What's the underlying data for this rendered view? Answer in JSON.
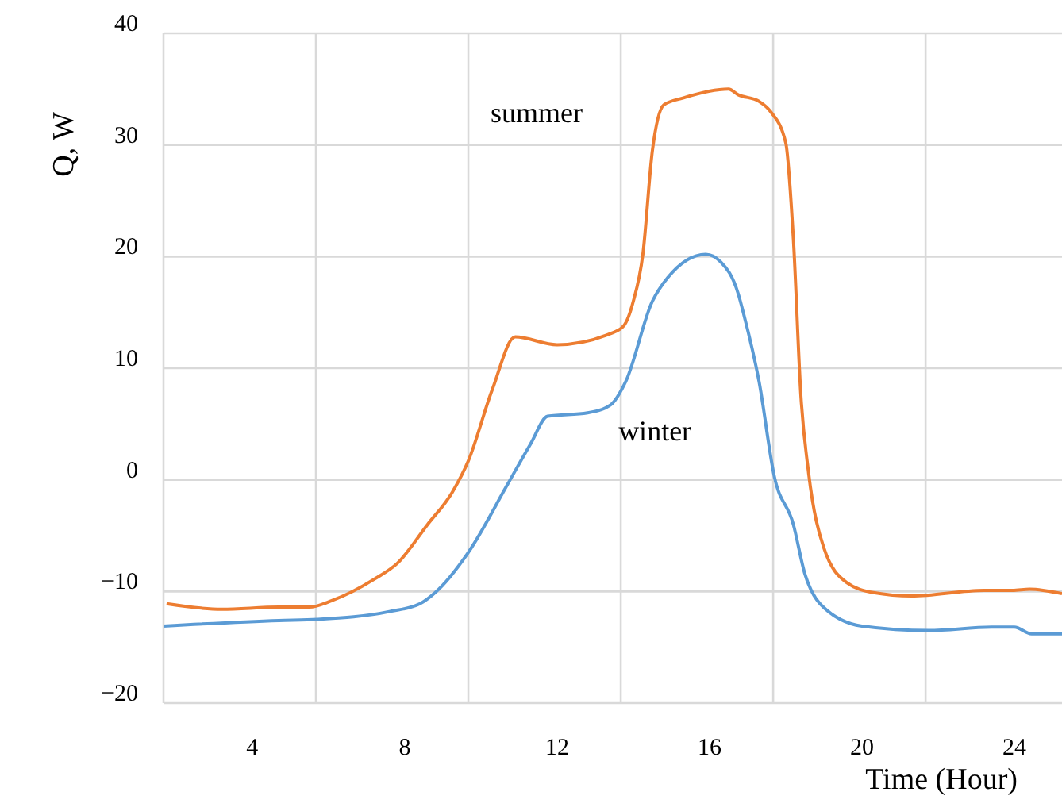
{
  "chart_data": {
    "type": "line",
    "xlabel": "Time (Hour)",
    "ylabel": "Q, W",
    "xlim": [
      1.67,
      25.25
    ],
    "xticks": [
      {
        "value": 4,
        "label": "4"
      },
      {
        "value": 8,
        "label": "8"
      },
      {
        "value": 12,
        "label": "12"
      },
      {
        "value": 16,
        "label": "16"
      },
      {
        "value": 20,
        "label": "20"
      },
      {
        "value": 24,
        "label": "24"
      },
      {
        "value": 5.67,
        "label": null
      },
      {
        "value": 9.67,
        "label": null
      },
      {
        "value": 13.67,
        "label": null
      },
      {
        "value": 17.67,
        "label": null
      },
      {
        "value": 21.67,
        "label": null
      }
    ],
    "ylim": [
      -20,
      40
    ],
    "yticks": [
      -20,
      -10,
      0,
      10,
      20,
      30,
      40
    ],
    "grid": true,
    "marker": "none",
    "line_style": "solid",
    "series": [
      {
        "name": "summer",
        "color": "#ed7d31",
        "x": [
          1.75,
          3.2,
          4.7,
          5.5,
          6.1,
          7.2,
          7.8,
          8.6,
          9.25,
          9.67,
          10.3,
          10.9,
          12.0,
          13.4,
          13.75,
          14.0,
          14.25,
          14.5,
          14.8,
          15.3,
          16.5,
          16.75,
          17.3,
          17.6,
          18.0,
          18.2,
          18.4,
          18.6,
          19.0,
          19.6,
          20.3,
          21.3,
          23.2,
          23.95,
          24.4,
          25.25
        ],
        "values": [
          -11.1,
          -11.6,
          -11.4,
          -11.4,
          -10.8,
          -8.9,
          -7.5,
          -4.0,
          -1.1,
          1.7,
          8.1,
          12.8,
          12.1,
          13.1,
          13.8,
          16.0,
          20.2,
          29.5,
          33.6,
          34.2,
          35.0,
          34.5,
          33.9,
          33.0,
          30.2,
          21.6,
          7.4,
          0.6,
          -6.1,
          -9.2,
          -10.1,
          -10.4,
          -9.9,
          -9.9,
          -9.8,
          -10.2
        ]
      },
      {
        "name": "winter",
        "color": "#5b9bd5",
        "x": [
          1.67,
          4.7,
          5.7,
          7.6,
          8.4,
          8.8,
          9.67,
          10.7,
          11.3,
          11.75,
          12.8,
          13.4,
          13.8,
          14.5,
          14.9,
          15.9,
          16.3,
          16.75,
          16.9,
          17.3,
          17.7,
          18.2,
          18.5,
          18.9,
          20.0,
          21.75,
          23.4,
          24.0,
          24.45,
          25.25
        ],
        "values": [
          -13.1,
          -12.6,
          -12.5,
          -11.8,
          -11.1,
          -10.1,
          -6.5,
          -0.4,
          3.2,
          5.7,
          6.0,
          6.7,
          8.8,
          16.0,
          18.1,
          20.2,
          19.5,
          16.7,
          14.8,
          8.8,
          0.3,
          -4.0,
          -8.4,
          -11.1,
          -13.1,
          -13.5,
          -13.2,
          -13.2,
          -13.8,
          -13.8
        ]
      }
    ]
  }
}
